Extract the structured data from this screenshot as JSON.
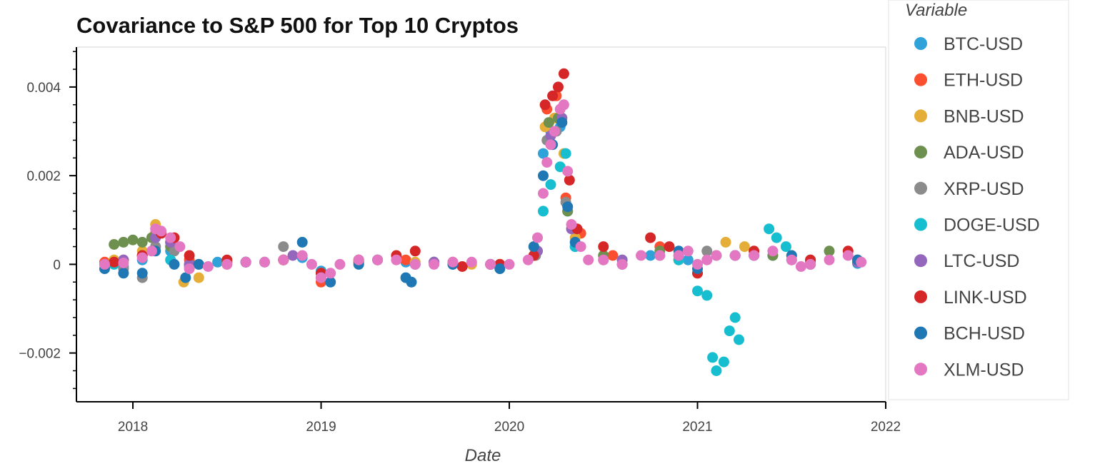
{
  "chart_data": {
    "type": "scatter",
    "title": "Covariance to S&P 500 for Top 10 Cryptos",
    "xlabel": "Date",
    "ylabel": "",
    "xlim": [
      2017.7,
      2022.0
    ],
    "ylim": [
      -0.0031,
      0.0049
    ],
    "x_ticks": [
      {
        "value": 2018,
        "label": "2018"
      },
      {
        "value": 2019,
        "label": "2019"
      },
      {
        "value": 2020,
        "label": "2020"
      },
      {
        "value": 2021,
        "label": "2021"
      },
      {
        "value": 2022,
        "label": "2022"
      }
    ],
    "y_ticks": [
      {
        "value": -0.002,
        "label": "−0.002"
      },
      {
        "value": 0,
        "label": "0"
      },
      {
        "value": 0.002,
        "label": "0.002"
      },
      {
        "value": 0.004,
        "label": "0.004"
      }
    ],
    "legend_title": "Variable",
    "legend_position": "right",
    "grid": false,
    "series": [
      {
        "name": "BTC-USD",
        "color": "#30a2da",
        "points": [
          [
            2017.85,
            1e-05
          ],
          [
            2017.95,
            -5e-05
          ],
          [
            2018.05,
            0.0001
          ],
          [
            2018.12,
            0.0004
          ],
          [
            2018.2,
            0.0003
          ],
          [
            2018.3,
            -5e-05
          ],
          [
            2018.45,
            5e-05
          ],
          [
            2018.7,
            5e-05
          ],
          [
            2018.9,
            0.00015
          ],
          [
            2019.0,
            -0.00015
          ],
          [
            2019.2,
            5e-05
          ],
          [
            2019.45,
            5e-05
          ],
          [
            2019.7,
            0.0
          ],
          [
            2019.95,
            -2e-05
          ],
          [
            2020.13,
            0.0002
          ],
          [
            2020.18,
            0.0025
          ],
          [
            2020.22,
            0.003
          ],
          [
            2020.27,
            0.0031
          ],
          [
            2020.31,
            0.0012
          ],
          [
            2020.35,
            0.0004
          ],
          [
            2020.5,
            0.0002
          ],
          [
            2020.75,
            0.0002
          ],
          [
            2020.95,
            0.0001
          ],
          [
            2021.2,
            0.0002
          ],
          [
            2021.4,
            0.0002
          ],
          [
            2021.6,
            5e-05
          ],
          [
            2021.85,
            2e-05
          ]
        ]
      },
      {
        "name": "ETH-USD",
        "color": "#fc4f30",
        "points": [
          [
            2017.85,
            5e-05
          ],
          [
            2017.95,
            0.0001
          ],
          [
            2018.05,
            0.0002
          ],
          [
            2018.12,
            0.0007
          ],
          [
            2018.2,
            0.0005
          ],
          [
            2018.3,
            0.0001
          ],
          [
            2018.5,
            5e-05
          ],
          [
            2018.8,
            0.0001
          ],
          [
            2019.0,
            -0.0004
          ],
          [
            2019.2,
            5e-05
          ],
          [
            2019.45,
            0.0001
          ],
          [
            2019.7,
            5e-05
          ],
          [
            2019.95,
            0.0
          ],
          [
            2020.14,
            0.0003
          ],
          [
            2020.2,
            0.0035
          ],
          [
            2020.25,
            0.0038
          ],
          [
            2020.3,
            0.0015
          ],
          [
            2020.38,
            0.0007
          ],
          [
            2020.55,
            0.0002
          ],
          [
            2020.8,
            0.0004
          ],
          [
            2021.0,
            -0.0002
          ],
          [
            2021.3,
            0.0002
          ],
          [
            2021.6,
            0.0
          ],
          [
            2021.85,
            0.0001
          ]
        ]
      },
      {
        "name": "BNB-USD",
        "color": "#e5ae38",
        "points": [
          [
            2017.9,
            0.0001
          ],
          [
            2018.05,
            0.0003
          ],
          [
            2018.12,
            0.0009
          ],
          [
            2018.2,
            0.0004
          ],
          [
            2018.27,
            -0.0004
          ],
          [
            2018.35,
            -0.0003
          ],
          [
            2018.5,
            0.0
          ],
          [
            2018.8,
            0.0001
          ],
          [
            2019.0,
            -0.0003
          ],
          [
            2019.2,
            0.0001
          ],
          [
            2019.5,
            5e-05
          ],
          [
            2019.8,
            0.0
          ],
          [
            2020.13,
            0.0004
          ],
          [
            2020.19,
            0.0031
          ],
          [
            2020.24,
            0.0033
          ],
          [
            2020.29,
            0.0025
          ],
          [
            2020.35,
            0.0006
          ],
          [
            2020.6,
            0.0
          ],
          [
            2020.9,
            0.0001
          ],
          [
            2021.15,
            0.0005
          ],
          [
            2021.25,
            0.0004
          ],
          [
            2021.5,
            0.0002
          ],
          [
            2021.85,
            5e-05
          ]
        ]
      },
      {
        "name": "ADA-USD",
        "color": "#6d904f",
        "points": [
          [
            2017.9,
            0.00045
          ],
          [
            2017.95,
            0.0005
          ],
          [
            2018.0,
            0.00055
          ],
          [
            2018.05,
            0.0005
          ],
          [
            2018.1,
            0.0006
          ],
          [
            2018.2,
            0.0004
          ],
          [
            2018.3,
            0.0
          ],
          [
            2018.5,
            5e-05
          ],
          [
            2018.8,
            0.0001
          ],
          [
            2019.0,
            -0.0002
          ],
          [
            2019.3,
            0.0001
          ],
          [
            2019.6,
            5e-05
          ],
          [
            2019.9,
            0.0
          ],
          [
            2020.15,
            0.0003
          ],
          [
            2020.21,
            0.0032
          ],
          [
            2020.26,
            0.0033
          ],
          [
            2020.31,
            0.0012
          ],
          [
            2020.5,
            0.0002
          ],
          [
            2020.8,
            0.0003
          ],
          [
            2021.1,
            0.0002
          ],
          [
            2021.4,
            0.0002
          ],
          [
            2021.7,
            0.0003
          ],
          [
            2021.85,
            0.0001
          ]
        ]
      },
      {
        "name": "XRP-USD",
        "color": "#8b8b8b",
        "points": [
          [
            2017.85,
            0.0
          ],
          [
            2017.95,
            -0.0001
          ],
          [
            2018.05,
            -0.0003
          ],
          [
            2018.12,
            0.0004
          ],
          [
            2018.22,
            0.0003
          ],
          [
            2018.35,
            0.0
          ],
          [
            2018.6,
            5e-05
          ],
          [
            2018.8,
            0.0004
          ],
          [
            2019.0,
            -0.0002
          ],
          [
            2019.3,
            0.0001
          ],
          [
            2019.6,
            5e-05
          ],
          [
            2019.9,
            0.0
          ],
          [
            2020.14,
            0.0002
          ],
          [
            2020.2,
            0.0028
          ],
          [
            2020.25,
            0.003
          ],
          [
            2020.3,
            0.0014
          ],
          [
            2020.5,
            0.0001
          ],
          [
            2020.8,
            0.0002
          ],
          [
            2021.05,
            0.0003
          ],
          [
            2021.3,
            0.0002
          ],
          [
            2021.6,
            0.0001
          ],
          [
            2021.85,
            5e-05
          ]
        ]
      },
      {
        "name": "DOGE-USD",
        "color": "#17becf",
        "points": [
          [
            2017.9,
            0.0
          ],
          [
            2018.2,
            0.0001
          ],
          [
            2018.6,
            5e-05
          ],
          [
            2019.0,
            -0.0002
          ],
          [
            2019.5,
            0.0
          ],
          [
            2019.9,
            0.0
          ],
          [
            2020.18,
            0.0012
          ],
          [
            2020.22,
            0.0018
          ],
          [
            2020.27,
            0.0022
          ],
          [
            2020.3,
            0.0025
          ],
          [
            2020.35,
            0.0004
          ],
          [
            2020.6,
            0.0001
          ],
          [
            2020.9,
            0.0001
          ],
          [
            2021.0,
            -0.0006
          ],
          [
            2021.05,
            -0.0007
          ],
          [
            2021.08,
            -0.0021
          ],
          [
            2021.1,
            -0.0024
          ],
          [
            2021.14,
            -0.0022
          ],
          [
            2021.17,
            -0.0015
          ],
          [
            2021.2,
            -0.0012
          ],
          [
            2021.22,
            -0.0017
          ],
          [
            2021.3,
            0.0002
          ],
          [
            2021.38,
            0.0008
          ],
          [
            2021.42,
            0.0006
          ],
          [
            2021.47,
            0.0004
          ],
          [
            2021.6,
            0.0
          ],
          [
            2021.85,
            5e-05
          ]
        ]
      },
      {
        "name": "LTC-USD",
        "color": "#9467bd",
        "points": [
          [
            2017.85,
            0.0
          ],
          [
            2017.95,
            0.0001
          ],
          [
            2018.05,
            0.0002
          ],
          [
            2018.12,
            0.0006
          ],
          [
            2018.2,
            0.0005
          ],
          [
            2018.3,
            0.0
          ],
          [
            2018.6,
            5e-05
          ],
          [
            2018.85,
            0.0002
          ],
          [
            2019.0,
            -0.0002
          ],
          [
            2019.3,
            0.0001
          ],
          [
            2019.6,
            5e-05
          ],
          [
            2019.9,
            0.0
          ],
          [
            2020.15,
            0.0003
          ],
          [
            2020.22,
            0.0029
          ],
          [
            2020.28,
            0.0033
          ],
          [
            2020.33,
            0.0008
          ],
          [
            2020.6,
            0.0001
          ],
          [
            2020.9,
            0.0002
          ],
          [
            2021.2,
            0.0002
          ],
          [
            2021.5,
            0.0001
          ],
          [
            2021.85,
            5e-05
          ]
        ]
      },
      {
        "name": "LINK-USD",
        "color": "#d62728",
        "points": [
          [
            2017.9,
            5e-05
          ],
          [
            2018.05,
            0.0002
          ],
          [
            2018.15,
            0.0007
          ],
          [
            2018.22,
            0.0006
          ],
          [
            2018.3,
            0.0002
          ],
          [
            2018.5,
            0.0001
          ],
          [
            2018.8,
            0.0001
          ],
          [
            2019.0,
            -0.0002
          ],
          [
            2019.2,
            0.0001
          ],
          [
            2019.4,
            0.0002
          ],
          [
            2019.5,
            0.0003
          ],
          [
            2019.75,
            -5e-05
          ],
          [
            2019.95,
            0.0
          ],
          [
            2020.13,
            0.0002
          ],
          [
            2020.19,
            0.0036
          ],
          [
            2020.23,
            0.0038
          ],
          [
            2020.26,
            0.004
          ],
          [
            2020.29,
            0.0043
          ],
          [
            2020.32,
            0.0019
          ],
          [
            2020.36,
            0.0008
          ],
          [
            2020.5,
            0.0004
          ],
          [
            2020.75,
            0.0006
          ],
          [
            2020.85,
            0.0004
          ],
          [
            2021.0,
            -0.0002
          ],
          [
            2021.3,
            0.0003
          ],
          [
            2021.6,
            0.0001
          ],
          [
            2021.8,
            0.0003
          ]
        ]
      },
      {
        "name": "BCH-USD",
        "color": "#1f77b4",
        "points": [
          [
            2017.85,
            -0.0001
          ],
          [
            2017.95,
            -0.0002
          ],
          [
            2018.05,
            -0.0002
          ],
          [
            2018.12,
            0.0003
          ],
          [
            2018.22,
            0.0
          ],
          [
            2018.28,
            -0.0003
          ],
          [
            2018.35,
            0.0
          ],
          [
            2018.6,
            5e-05
          ],
          [
            2018.9,
            0.0005
          ],
          [
            2019.0,
            -0.0003
          ],
          [
            2019.05,
            -0.0004
          ],
          [
            2019.2,
            0.0
          ],
          [
            2019.45,
            -0.0003
          ],
          [
            2019.48,
            -0.0004
          ],
          [
            2019.7,
            0.0
          ],
          [
            2019.95,
            -0.0001
          ],
          [
            2020.13,
            0.0004
          ],
          [
            2020.18,
            0.002
          ],
          [
            2020.23,
            0.0027
          ],
          [
            2020.28,
            0.0032
          ],
          [
            2020.31,
            0.0013
          ],
          [
            2020.35,
            0.0005
          ],
          [
            2020.6,
            0.0
          ],
          [
            2020.9,
            0.0003
          ],
          [
            2021.0,
            -0.0001
          ],
          [
            2021.2,
            0.0002
          ],
          [
            2021.5,
            0.0002
          ],
          [
            2021.85,
            0.0001
          ]
        ]
      },
      {
        "name": "XLM-USD",
        "color": "#e377c2",
        "points": [
          [
            2017.85,
            0.0
          ],
          [
            2017.95,
            3e-05
          ],
          [
            2018.05,
            0.00015
          ],
          [
            2018.1,
            0.0003
          ],
          [
            2018.12,
            0.0008
          ],
          [
            2018.15,
            0.00075
          ],
          [
            2018.2,
            0.0006
          ],
          [
            2018.25,
            0.0004
          ],
          [
            2018.3,
            -0.0001
          ],
          [
            2018.4,
            -5e-05
          ],
          [
            2018.5,
            0.0
          ],
          [
            2018.6,
            5e-05
          ],
          [
            2018.7,
            5e-05
          ],
          [
            2018.8,
            0.0001
          ],
          [
            2018.9,
            0.0002
          ],
          [
            2018.95,
            0.0
          ],
          [
            2019.0,
            -0.0003
          ],
          [
            2019.05,
            -0.0002
          ],
          [
            2019.1,
            0.0
          ],
          [
            2019.2,
            0.0001
          ],
          [
            2019.3,
            0.0001
          ],
          [
            2019.4,
            0.0001
          ],
          [
            2019.5,
            0.0
          ],
          [
            2019.6,
            0.0
          ],
          [
            2019.7,
            5e-05
          ],
          [
            2019.8,
            5e-05
          ],
          [
            2019.9,
            0.0
          ],
          [
            2020.0,
            0.0
          ],
          [
            2020.1,
            0.0001
          ],
          [
            2020.15,
            0.0006
          ],
          [
            2020.18,
            0.0016
          ],
          [
            2020.2,
            0.0023
          ],
          [
            2020.22,
            0.0027
          ],
          [
            2020.24,
            0.003
          ],
          [
            2020.27,
            0.0035
          ],
          [
            2020.29,
            0.0036
          ],
          [
            2020.31,
            0.0021
          ],
          [
            2020.33,
            0.0009
          ],
          [
            2020.38,
            0.0004
          ],
          [
            2020.42,
            0.0001
          ],
          [
            2020.5,
            0.0001
          ],
          [
            2020.6,
            0.0
          ],
          [
            2020.7,
            0.0002
          ],
          [
            2020.8,
            0.0002
          ],
          [
            2020.9,
            0.0002
          ],
          [
            2020.95,
            0.0003
          ],
          [
            2021.0,
            0.0
          ],
          [
            2021.05,
            0.0001
          ],
          [
            2021.1,
            0.0002
          ],
          [
            2021.2,
            0.0002
          ],
          [
            2021.3,
            0.0002
          ],
          [
            2021.4,
            0.0003
          ],
          [
            2021.5,
            0.0001
          ],
          [
            2021.55,
            -5e-05
          ],
          [
            2021.6,
            0.0
          ],
          [
            2021.7,
            0.0001
          ],
          [
            2021.8,
            0.0002
          ],
          [
            2021.87,
            5e-05
          ]
        ]
      }
    ]
  }
}
